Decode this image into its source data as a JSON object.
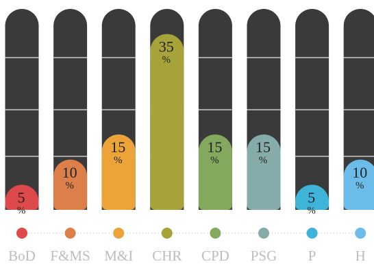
{
  "chart_data": {
    "type": "bar",
    "categories": [
      "BoD",
      "F&MS",
      "M&I",
      "CHR",
      "CPD",
      "PSG",
      "P",
      "H"
    ],
    "values": [
      5,
      10,
      15,
      35,
      15,
      15,
      5,
      10
    ],
    "unit": "%",
    "colors": [
      "#de4a4b",
      "#dc7f48",
      "#eba33a",
      "#a6a33a",
      "#84a85e",
      "#86abab",
      "#3eb4d8",
      "#6cbce9"
    ],
    "track_color": "#3a3a3a",
    "label_color": "#bdbdbd",
    "grid": true
  }
}
